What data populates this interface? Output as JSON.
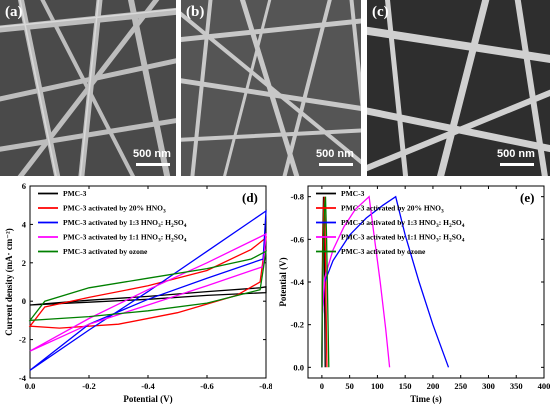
{
  "sem_panels": [
    {
      "label": "(a)",
      "scale": "500 nm"
    },
    {
      "label": "(b)",
      "scale": "500 nm"
    },
    {
      "label": "(c)",
      "scale": "500 nm"
    }
  ],
  "chart_data": [
    {
      "type": "line",
      "panel_label": "(d)",
      "xlabel": "Potential (V)",
      "ylabel": "Current density (mA· cm⁻²)",
      "xlim": [
        0.0,
        -0.8
      ],
      "ylim": [
        -4,
        6
      ],
      "x_ticks": [
        "0.0",
        "-0.2",
        "-0.4",
        "-0.6",
        "-0.8"
      ],
      "y_ticks": [
        "-4",
        "-2",
        "0",
        "2",
        "4",
        "6"
      ],
      "legend_position": "top-left",
      "series": [
        {
          "name": "PMC-3",
          "legend": [
            "PMC-3",
            "",
            ""
          ],
          "color": "#000000",
          "upper": [
            [
              0.0,
              -0.2
            ],
            [
              -0.2,
              0.05
            ],
            [
              -0.4,
              0.25
            ],
            [
              -0.6,
              0.5
            ],
            [
              -0.78,
              0.7
            ],
            [
              -0.8,
              0.75
            ]
          ],
          "lower": [
            [
              -0.8,
              0.75
            ],
            [
              -0.8,
              0.45
            ],
            [
              -0.6,
              0.3
            ],
            [
              -0.4,
              0.1
            ],
            [
              -0.2,
              -0.05
            ],
            [
              0.0,
              -0.2
            ]
          ]
        },
        {
          "name": "PMC-3 activated by 20% HNO3",
          "legend": [
            "PMC-3 activated by 20% HNO",
            "3",
            ""
          ],
          "color": "#ff0000",
          "upper": [
            [
              0.0,
              -1.3
            ],
            [
              -0.05,
              -0.3
            ],
            [
              -0.2,
              0.2
            ],
            [
              -0.4,
              0.8
            ],
            [
              -0.6,
              1.6
            ],
            [
              -0.75,
              2.7
            ],
            [
              -0.8,
              3.3
            ]
          ],
          "lower": [
            [
              -0.8,
              3.3
            ],
            [
              -0.78,
              1.0
            ],
            [
              -0.7,
              0.3
            ],
            [
              -0.5,
              -0.6
            ],
            [
              -0.3,
              -1.2
            ],
            [
              -0.1,
              -1.4
            ],
            [
              0.0,
              -1.3
            ]
          ]
        },
        {
          "name": "PMC-3 activated by 1:3 HNO3: H2SO4",
          "legend": [
            "PMC-3 activated by 1:3 HNO",
            "3",
            ": H",
            "2",
            "SO",
            "4"
          ],
          "color": "#0000ff",
          "upper": [
            [
              0.0,
              -3.6
            ],
            [
              -0.2,
              -1.5
            ],
            [
              -0.4,
              0.5
            ],
            [
              -0.6,
              2.6
            ],
            [
              -0.8,
              4.7
            ]
          ],
          "lower": [
            [
              -0.8,
              4.7
            ],
            [
              -0.79,
              2.2
            ],
            [
              -0.6,
              1.2
            ],
            [
              -0.4,
              0.1
            ],
            [
              -0.2,
              -1.2
            ],
            [
              0.0,
              -3.6
            ]
          ]
        },
        {
          "name": "PMC-3 activated by 1:1 HNO3: H2SO4",
          "legend": [
            "PMC-3 activated by 1:1 HNO",
            "3",
            ": H",
            "2",
            "SO",
            "4"
          ],
          "color": "#ff00ff",
          "upper": [
            [
              0.0,
              -2.6
            ],
            [
              -0.2,
              -0.9
            ],
            [
              -0.4,
              0.6
            ],
            [
              -0.6,
              2.0
            ],
            [
              -0.8,
              3.5
            ]
          ],
          "lower": [
            [
              -0.8,
              3.5
            ],
            [
              -0.79,
              1.8
            ],
            [
              -0.6,
              0.8
            ],
            [
              -0.4,
              -0.2
            ],
            [
              -0.2,
              -1.2
            ],
            [
              0.0,
              -2.6
            ]
          ]
        },
        {
          "name": "PMC-3 activated by ozone",
          "legend": [
            "PMC-3 activated by ozone",
            "",
            ""
          ],
          "color": "#008000",
          "upper": [
            [
              0.0,
              -1.0
            ],
            [
              -0.05,
              0.0
            ],
            [
              -0.2,
              0.7
            ],
            [
              -0.4,
              1.2
            ],
            [
              -0.6,
              1.7
            ],
            [
              -0.75,
              2.2
            ],
            [
              -0.8,
              2.6
            ]
          ],
          "lower": [
            [
              -0.8,
              2.6
            ],
            [
              -0.78,
              0.6
            ],
            [
              -0.6,
              -0.1
            ],
            [
              -0.4,
              -0.5
            ],
            [
              -0.2,
              -0.8
            ],
            [
              0.0,
              -1.0
            ]
          ]
        }
      ]
    },
    {
      "type": "line",
      "panel_label": "(e)",
      "xlabel": "Time (s)",
      "ylabel": "Potential (V)",
      "xlim": [
        -25,
        400
      ],
      "ylim": [
        0.05,
        -0.85
      ],
      "x_ticks": [
        "0",
        "50",
        "100",
        "150",
        "200",
        "250",
        "300",
        "350",
        "400"
      ],
      "y_ticks": [
        "0.0",
        "-0.2",
        "-0.4",
        "-0.6",
        "-0.8"
      ],
      "legend_position": "top-left",
      "series": [
        {
          "name": "PMC-3",
          "legend": [
            "PMC-3",
            "",
            ""
          ],
          "color": "#000000",
          "points": [
            [
              0,
              0.0
            ],
            [
              0.5,
              -0.35
            ],
            [
              1.5,
              -0.6
            ],
            [
              2.5,
              -0.75
            ],
            [
              3,
              -0.8
            ],
            [
              4,
              -0.6
            ],
            [
              5,
              -0.3
            ],
            [
              6,
              0.0
            ]
          ]
        },
        {
          "name": "PMC-3 activated by 20% HNO3",
          "legend": [
            "PMC-3 activated by 20% HNO",
            "3",
            ""
          ],
          "color": "#ff0000",
          "points": [
            [
              0,
              0.0
            ],
            [
              0.8,
              -0.35
            ],
            [
              2,
              -0.6
            ],
            [
              3.5,
              -0.75
            ],
            [
              4.5,
              -0.8
            ],
            [
              6,
              -0.6
            ],
            [
              7.5,
              -0.3
            ],
            [
              9,
              0.0
            ]
          ]
        },
        {
          "name": "PMC-3 activated by 1:3 HNO3: H2SO4",
          "legend": [
            "PMC-3 activated by 1:3 HNO",
            "3",
            ": H",
            "2",
            "SO",
            "4"
          ],
          "color": "#0000ff",
          "points": [
            [
              0,
              0.0
            ],
            [
              1,
              -0.25
            ],
            [
              5,
              -0.4
            ],
            [
              20,
              -0.5
            ],
            [
              50,
              -0.62
            ],
            [
              80,
              -0.7
            ],
            [
              110,
              -0.76
            ],
            [
              133,
              -0.8
            ],
            [
              150,
              -0.62
            ],
            [
              175,
              -0.4
            ],
            [
              200,
              -0.2
            ],
            [
              228,
              0.0
            ]
          ]
        },
        {
          "name": "PMC-3 activated by 1:1 HNO3: H2SO4",
          "legend": [
            "PMC-3 activated by 1:1 HNO",
            "3",
            ": H",
            "2",
            "SO",
            "4"
          ],
          "color": "#ff00ff",
          "points": [
            [
              0,
              0.0
            ],
            [
              1,
              -0.25
            ],
            [
              5,
              -0.42
            ],
            [
              20,
              -0.55
            ],
            [
              40,
              -0.66
            ],
            [
              60,
              -0.74
            ],
            [
              85,
              -0.8
            ],
            [
              95,
              -0.6
            ],
            [
              105,
              -0.4
            ],
            [
              115,
              -0.18
            ],
            [
              122,
              0.0
            ]
          ]
        },
        {
          "name": "PMC-3 activated by ozone",
          "legend": [
            "PMC-3 activated by ozone",
            "",
            ""
          ],
          "color": "#008000",
          "points": [
            [
              0,
              0.0
            ],
            [
              1,
              -0.35
            ],
            [
              3,
              -0.6
            ],
            [
              5,
              -0.76
            ],
            [
              6.5,
              -0.8
            ],
            [
              8.5,
              -0.6
            ],
            [
              10.5,
              -0.3
            ],
            [
              12.5,
              0.0
            ]
          ]
        }
      ]
    }
  ]
}
